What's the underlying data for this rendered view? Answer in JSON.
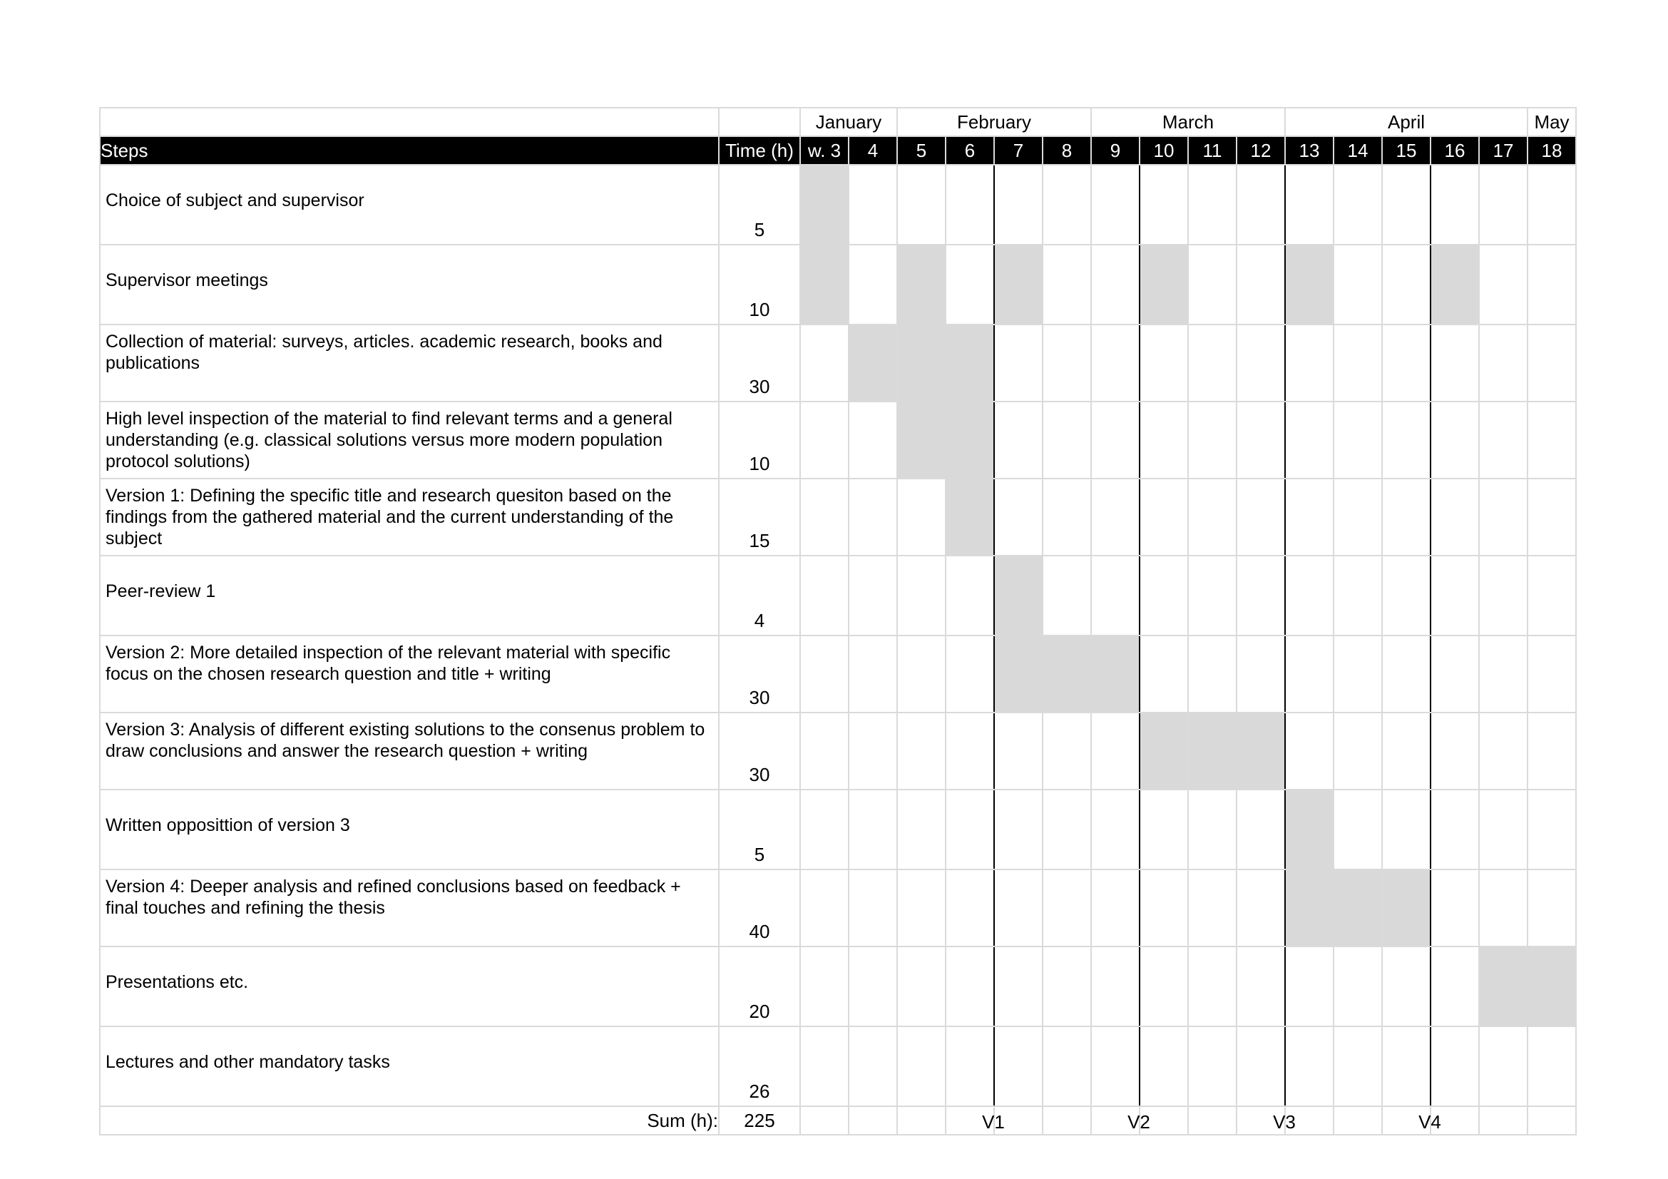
{
  "months": {
    "january": "January",
    "february": "February",
    "march": "March",
    "april": "April",
    "may": "May"
  },
  "header": {
    "steps": "Steps",
    "time": "Time (h)",
    "weeks": [
      "w. 3",
      "4",
      "5",
      "6",
      "7",
      "8",
      "9",
      "10",
      "11",
      "12",
      "13",
      "14",
      "15",
      "16",
      "17",
      "18"
    ]
  },
  "tasks": [
    {
      "step": "Choice of subject and supervisor",
      "time": "5",
      "weeks": [
        3
      ]
    },
    {
      "step": "Supervisor meetings",
      "time": "10",
      "weeks": [
        3,
        5,
        7,
        10,
        13,
        16
      ]
    },
    {
      "step": "Collection of material: surveys, articles. academic research, books and publications",
      "time": "30",
      "weeks": [
        4,
        5,
        6
      ]
    },
    {
      "step": "High level inspection of the material to find relevant terms and a general understanding (e.g. classical solutions versus more modern population protocol solutions)",
      "time": "10",
      "weeks": [
        5,
        6
      ]
    },
    {
      "step": "Version 1: Defining the specific title and research quesiton based on the findings from the gathered material and the current understanding of the subject",
      "time": "15",
      "weeks": [
        6
      ]
    },
    {
      "step": "Peer-review 1",
      "time": "4",
      "weeks": [
        7
      ]
    },
    {
      "step": "Version 2: More detailed inspection of the relevant material with specific focus on the chosen research question and title + writing",
      "time": "30",
      "weeks": [
        7,
        8,
        9
      ]
    },
    {
      "step": "Version 3: Analysis of different existing solutions to the consenus problem to draw conclusions and answer the research question + writing",
      "time": "30",
      "weeks": [
        10,
        11,
        12
      ]
    },
    {
      "step": "Written opposittion of version 3",
      "time": "5",
      "weeks": [
        13
      ]
    },
    {
      "step": "Version 4: Deeper analysis and refined conclusions based on feedback + final touches and refining the thesis",
      "time": "40",
      "weeks": [
        13,
        14,
        15
      ]
    },
    {
      "step": "Presentations etc.",
      "time": "20",
      "weeks": [
        17,
        18
      ]
    },
    {
      "step": "Lectures and other mandatory tasks",
      "time": "26",
      "weeks": []
    }
  ],
  "summary": {
    "label": "Sum (h):",
    "total": "225",
    "milestones": [
      "V1",
      "V2",
      "V3",
      "V4"
    ]
  },
  "colors": {
    "scheduled_cell": "#d9d9d9",
    "header_background": "#000000",
    "grid": "#dadada"
  }
}
